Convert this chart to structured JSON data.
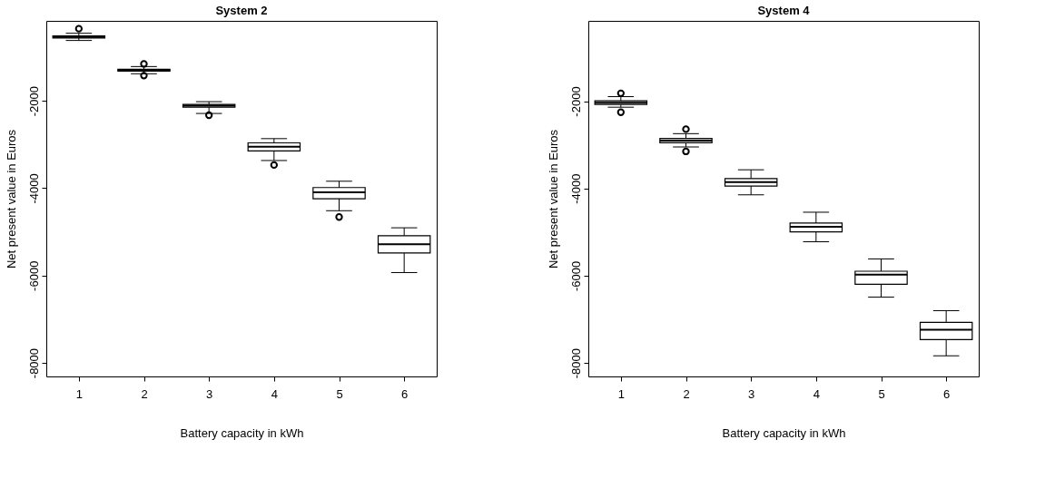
{
  "chart_data": [
    {
      "type": "box",
      "title": "System 2",
      "xlabel": "Battery capacity in kWh",
      "ylabel": "Net present value in Euros",
      "categories": [
        "1",
        "2",
        "3",
        "4",
        "5",
        "6"
      ],
      "ylim": [
        -8310,
        -170
      ],
      "yticks": [
        -2000,
        -4000,
        -6000,
        -8000
      ],
      "boxes": [
        {
          "low": -619,
          "q1": -560,
          "median": -536,
          "q3": -515,
          "high": -454,
          "outliers": [
            -350
          ]
        },
        {
          "low": -1381,
          "q1": -1320,
          "median": -1300,
          "q3": -1280,
          "high": -1216,
          "outliers": [
            -1155,
            -1423
          ]
        },
        {
          "low": -2290,
          "q1": -2144,
          "median": -2113,
          "q3": -2082,
          "high": -2020,
          "outliers": [
            -2330
          ]
        },
        {
          "low": -3367,
          "q1": -3148,
          "median": -3052,
          "q3": -2963,
          "high": -2866,
          "outliers": [
            -3470
          ]
        },
        {
          "low": -4516,
          "q1": -4241,
          "median": -4097,
          "q3": -3986,
          "high": -3841,
          "outliers": [
            -4660
          ]
        },
        {
          "low": -5932,
          "q1": -5485,
          "median": -5285,
          "q3": -5087,
          "high": -4907
        }
      ]
    },
    {
      "type": "box",
      "title": "System 4",
      "xlabel": "Battery capacity in kWh",
      "ylabel": "Net present value in Euros",
      "categories": [
        "1",
        "2",
        "3",
        "4",
        "5",
        "6"
      ],
      "ylim": [
        -8310,
        -160
      ],
      "yticks": [
        -2000,
        -4000,
        -6000,
        -8000
      ],
      "boxes": [
        {
          "low": -2139,
          "q1": -2077,
          "median": -2035,
          "q3": -1994,
          "high": -1897,
          "outliers": [
            -1820,
            -2255
          ]
        },
        {
          "low": -3050,
          "q1": -2952,
          "median": -2903,
          "q3": -2855,
          "high": -2745,
          "outliers": [
            -2642,
            -3153
          ]
        },
        {
          "low": -4147,
          "q1": -3946,
          "median": -3857,
          "q3": -3774,
          "high": -3573
        },
        {
          "low": -5223,
          "q1": -4995,
          "median": -4877,
          "q3": -4795,
          "high": -4546
        },
        {
          "low": -6492,
          "q1": -6196,
          "median": -5975,
          "q3": -5898,
          "high": -5616
        },
        {
          "low": -7837,
          "q1": -7465,
          "median": -7237,
          "q3": -7072,
          "high": -6802
        }
      ]
    }
  ]
}
